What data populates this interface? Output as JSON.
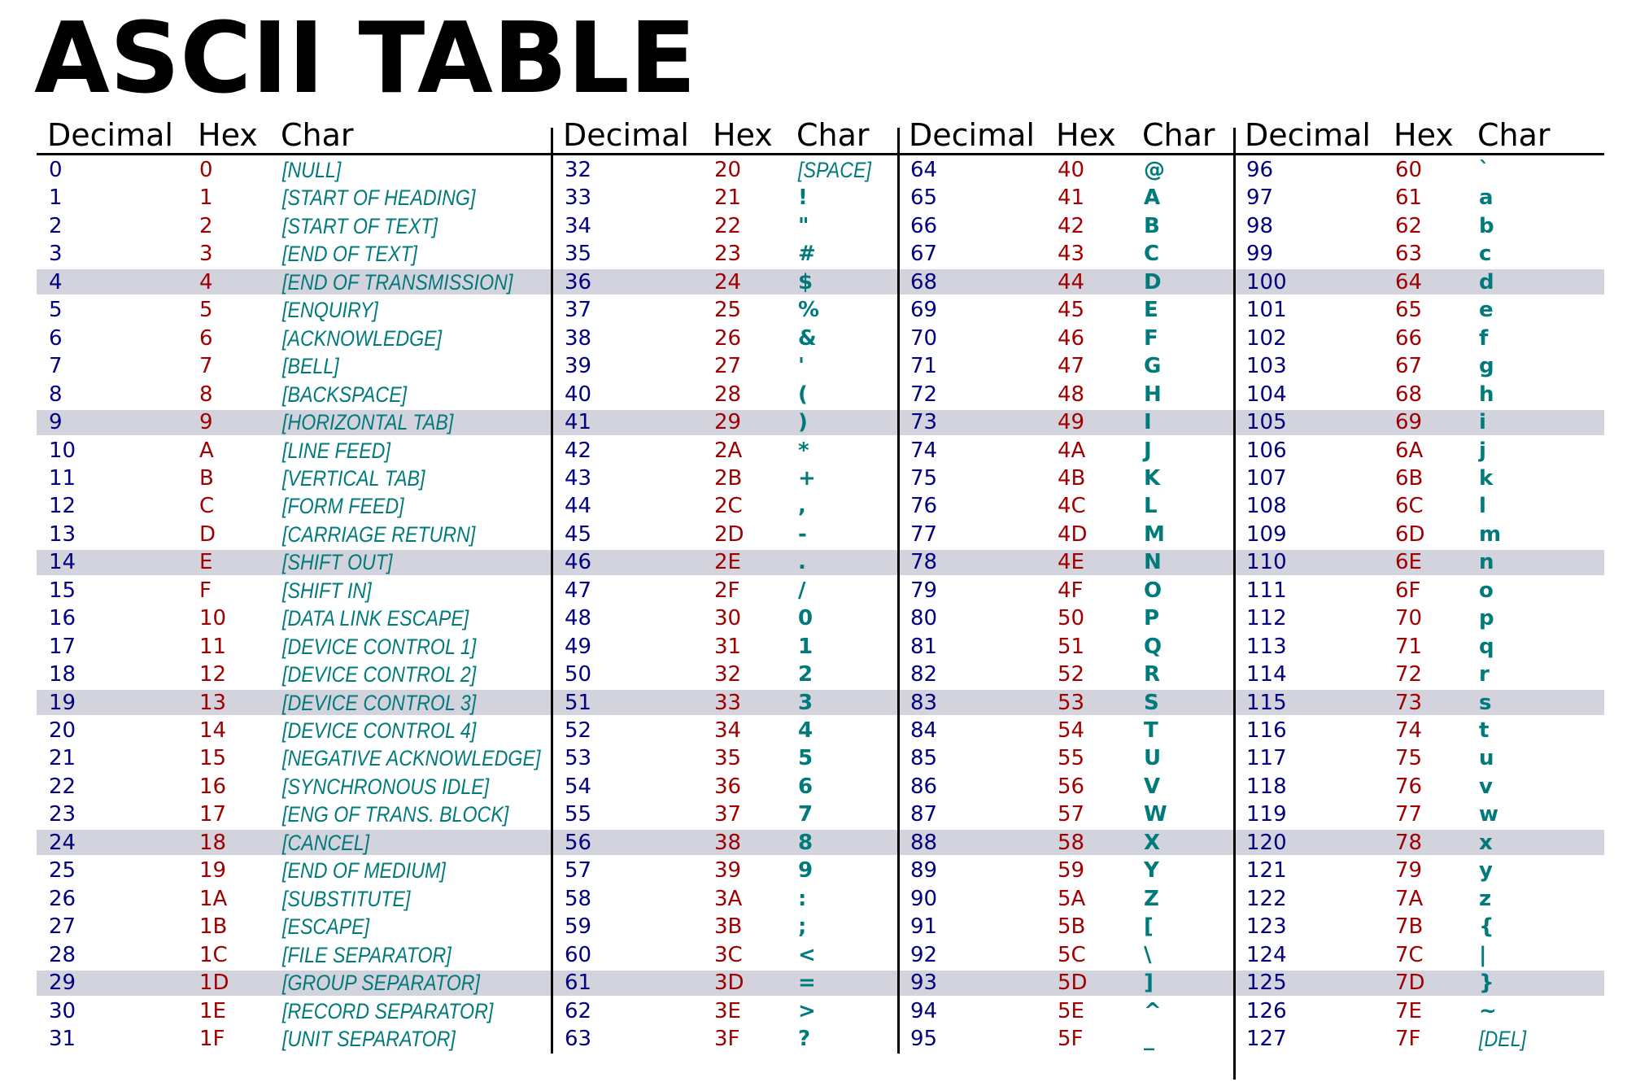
{
  "title": "ASCII TABLE",
  "columns": [
    "Decimal",
    "Hex",
    "Char"
  ],
  "blocks": [
    {
      "rows": [
        [
          0,
          "0",
          "[NULL]"
        ],
        [
          1,
          "1",
          "[START OF HEADING]"
        ],
        [
          2,
          "2",
          "[START OF TEXT]"
        ],
        [
          3,
          "3",
          "[END OF TEXT]"
        ],
        [
          4,
          "4",
          "[END OF TRANSMISSION]"
        ],
        [
          5,
          "5",
          "[ENQUIRY]"
        ],
        [
          6,
          "6",
          "[ACKNOWLEDGE]"
        ],
        [
          7,
          "7",
          "[BELL]"
        ],
        [
          8,
          "8",
          "[BACKSPACE]"
        ],
        [
          9,
          "9",
          "[HORIZONTAL TAB]"
        ],
        [
          10,
          "A",
          "[LINE FEED]"
        ],
        [
          11,
          "B",
          "[VERTICAL TAB]"
        ],
        [
          12,
          "C",
          "[FORM FEED]"
        ],
        [
          13,
          "D",
          "[CARRIAGE RETURN]"
        ],
        [
          14,
          "E",
          "[SHIFT OUT]"
        ],
        [
          15,
          "F",
          "[SHIFT IN]"
        ],
        [
          16,
          "10",
          "[DATA LINK ESCAPE]"
        ],
        [
          17,
          "11",
          "[DEVICE CONTROL 1]"
        ],
        [
          18,
          "12",
          "[DEVICE CONTROL 2]"
        ],
        [
          19,
          "13",
          "[DEVICE CONTROL 3]"
        ],
        [
          20,
          "14",
          "[DEVICE CONTROL 4]"
        ],
        [
          21,
          "15",
          "[NEGATIVE ACKNOWLEDGE]"
        ],
        [
          22,
          "16",
          "[SYNCHRONOUS IDLE]"
        ],
        [
          23,
          "17",
          "[ENG OF TRANS. BLOCK]"
        ],
        [
          24,
          "18",
          "[CANCEL]"
        ],
        [
          25,
          "19",
          "[END OF MEDIUM]"
        ],
        [
          26,
          "1A",
          "[SUBSTITUTE]"
        ],
        [
          27,
          "1B",
          "[ESCAPE]"
        ],
        [
          28,
          "1C",
          "[FILE SEPARATOR]"
        ],
        [
          29,
          "1D",
          "[GROUP SEPARATOR]"
        ],
        [
          30,
          "1E",
          "[RECORD SEPARATOR]"
        ],
        [
          31,
          "1F",
          "[UNIT SEPARATOR]"
        ]
      ]
    },
    {
      "rows": [
        [
          32,
          "20",
          "[SPACE]"
        ],
        [
          33,
          "21",
          "!"
        ],
        [
          34,
          "22",
          "\""
        ],
        [
          35,
          "23",
          "#"
        ],
        [
          36,
          "24",
          "$"
        ],
        [
          37,
          "25",
          "%"
        ],
        [
          38,
          "26",
          "&"
        ],
        [
          39,
          "27",
          "'"
        ],
        [
          40,
          "28",
          "("
        ],
        [
          41,
          "29",
          ")"
        ],
        [
          42,
          "2A",
          "*"
        ],
        [
          43,
          "2B",
          "+"
        ],
        [
          44,
          "2C",
          ","
        ],
        [
          45,
          "2D",
          "-"
        ],
        [
          46,
          "2E",
          "."
        ],
        [
          47,
          "2F",
          "/"
        ],
        [
          48,
          "30",
          "0"
        ],
        [
          49,
          "31",
          "1"
        ],
        [
          50,
          "32",
          "2"
        ],
        [
          51,
          "33",
          "3"
        ],
        [
          52,
          "34",
          "4"
        ],
        [
          53,
          "35",
          "5"
        ],
        [
          54,
          "36",
          "6"
        ],
        [
          55,
          "37",
          "7"
        ],
        [
          56,
          "38",
          "8"
        ],
        [
          57,
          "39",
          "9"
        ],
        [
          58,
          "3A",
          ":"
        ],
        [
          59,
          "3B",
          ";"
        ],
        [
          60,
          "3C",
          "<"
        ],
        [
          61,
          "3D",
          "="
        ],
        [
          62,
          "3E",
          ">"
        ],
        [
          63,
          "3F",
          "?"
        ]
      ]
    },
    {
      "rows": [
        [
          64,
          "40",
          "@"
        ],
        [
          65,
          "41",
          "A"
        ],
        [
          66,
          "42",
          "B"
        ],
        [
          67,
          "43",
          "C"
        ],
        [
          68,
          "44",
          "D"
        ],
        [
          69,
          "45",
          "E"
        ],
        [
          70,
          "46",
          "F"
        ],
        [
          71,
          "47",
          "G"
        ],
        [
          72,
          "48",
          "H"
        ],
        [
          73,
          "49",
          "I"
        ],
        [
          74,
          "4A",
          "J"
        ],
        [
          75,
          "4B",
          "K"
        ],
        [
          76,
          "4C",
          "L"
        ],
        [
          77,
          "4D",
          "M"
        ],
        [
          78,
          "4E",
          "N"
        ],
        [
          79,
          "4F",
          "O"
        ],
        [
          80,
          "50",
          "P"
        ],
        [
          81,
          "51",
          "Q"
        ],
        [
          82,
          "52",
          "R"
        ],
        [
          83,
          "53",
          "S"
        ],
        [
          84,
          "54",
          "T"
        ],
        [
          85,
          "55",
          "U"
        ],
        [
          86,
          "56",
          "V"
        ],
        [
          87,
          "57",
          "W"
        ],
        [
          88,
          "58",
          "X"
        ],
        [
          89,
          "59",
          "Y"
        ],
        [
          90,
          "5A",
          "Z"
        ],
        [
          91,
          "5B",
          "["
        ],
        [
          92,
          "5C",
          "\\"
        ],
        [
          93,
          "5D",
          "]"
        ],
        [
          94,
          "5E",
          "^"
        ],
        [
          95,
          "5F",
          "_"
        ]
      ]
    },
    {
      "rows": [
        [
          96,
          "60",
          "`"
        ],
        [
          97,
          "61",
          "a"
        ],
        [
          98,
          "62",
          "b"
        ],
        [
          99,
          "63",
          "c"
        ],
        [
          100,
          "64",
          "d"
        ],
        [
          101,
          "65",
          "e"
        ],
        [
          102,
          "66",
          "f"
        ],
        [
          103,
          "67",
          "g"
        ],
        [
          104,
          "68",
          "h"
        ],
        [
          105,
          "69",
          "i"
        ],
        [
          106,
          "6A",
          "j"
        ],
        [
          107,
          "6B",
          "k"
        ],
        [
          108,
          "6C",
          "l"
        ],
        [
          109,
          "6D",
          "m"
        ],
        [
          110,
          "6E",
          "n"
        ],
        [
          111,
          "6F",
          "o"
        ],
        [
          112,
          "70",
          "p"
        ],
        [
          113,
          "71",
          "q"
        ],
        [
          114,
          "72",
          "r"
        ],
        [
          115,
          "73",
          "s"
        ],
        [
          116,
          "74",
          "t"
        ],
        [
          117,
          "75",
          "u"
        ],
        [
          118,
          "76",
          "v"
        ],
        [
          119,
          "77",
          "w"
        ],
        [
          120,
          "78",
          "x"
        ],
        [
          121,
          "79",
          "y"
        ],
        [
          122,
          "7A",
          "z"
        ],
        [
          123,
          "7B",
          "{"
        ],
        [
          124,
          "7C",
          "|"
        ],
        [
          125,
          "7D",
          "}"
        ],
        [
          126,
          "7E",
          "~"
        ],
        [
          127,
          "7F",
          "[DEL]"
        ]
      ]
    }
  ]
}
